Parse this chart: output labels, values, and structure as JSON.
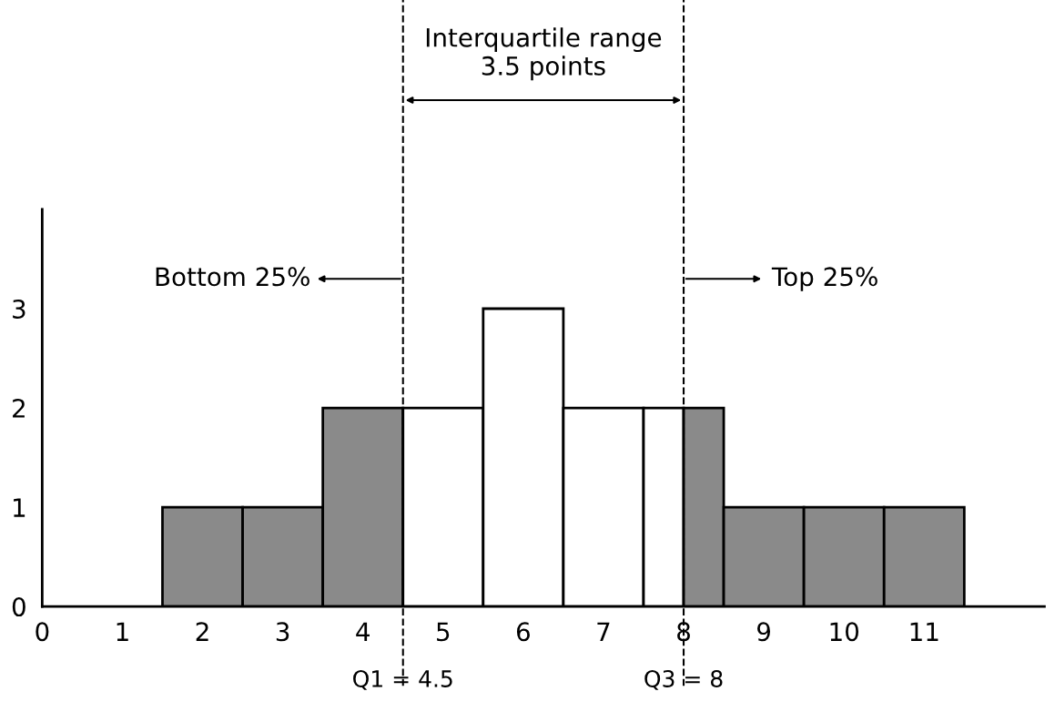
{
  "chart_data": {
    "type": "histogram",
    "bins": [
      1.5,
      2.5,
      3.5,
      4.5,
      5.5,
      6.5,
      7.5,
      8,
      8.5,
      9.5,
      10.5,
      11.5
    ],
    "values": [
      1,
      1,
      2,
      2,
      3,
      2,
      2,
      2,
      1,
      1,
      1
    ],
    "colors": [
      "#8a8a8a",
      "#8a8a8a",
      "#8a8a8a",
      "#ffffff",
      "#ffffff",
      "#ffffff",
      "#ffffff",
      "#8a8a8a",
      "#8a8a8a",
      "#8a8a8a",
      "#8a8a8a"
    ],
    "xlim": [
      0,
      12.5
    ],
    "ylim": [
      0,
      4
    ],
    "xticks": [
      0,
      1,
      2,
      3,
      4,
      5,
      6,
      7,
      8,
      9,
      10,
      11
    ],
    "yticks": [
      0,
      1,
      2,
      3
    ],
    "grid": false,
    "legend": false,
    "ref_lines": [
      {
        "axis": "x",
        "value": 4.5,
        "label": "Q1 = 4.5",
        "line_style": "dashed",
        "color": "#000000"
      },
      {
        "axis": "x",
        "value": 8,
        "label": "Q3 = 8",
        "line_style": "dashed",
        "color": "#000000"
      }
    ],
    "annotations": [
      "Interquartile range\n3.5 points",
      "Bottom 25%",
      "Top 25%"
    ]
  }
}
